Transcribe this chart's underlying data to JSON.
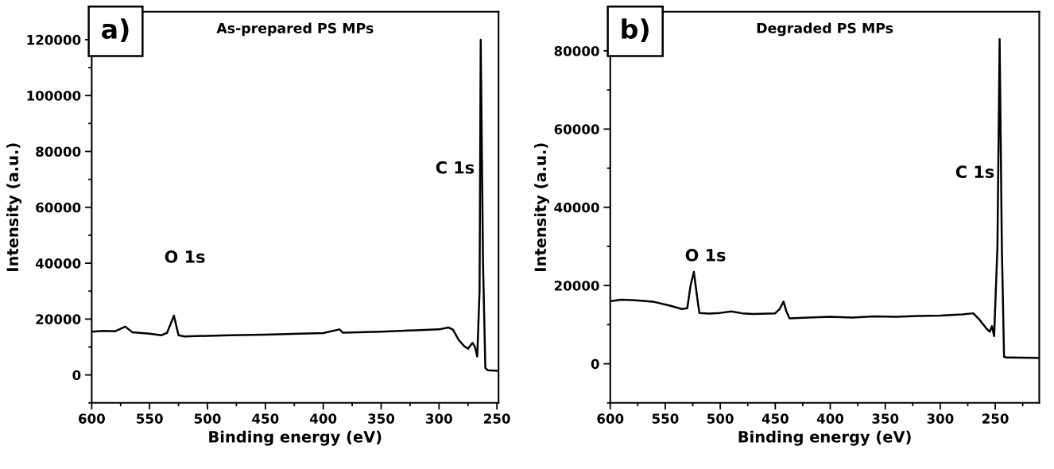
{
  "chart_data": [
    {
      "type": "line",
      "title": "As-prepared PS MPs",
      "xlabel": "Binding energy (eV)",
      "ylabel": "Intensity (a.u.)",
      "xlim": [
        600,
        248.6
      ],
      "xticks": [
        600,
        550,
        500,
        450,
        400,
        350,
        300,
        250
      ],
      "ylim": [
        -10000,
        130000
      ],
      "yticks": [
        0,
        20000,
        40000,
        60000,
        80000,
        100000,
        120000
      ],
      "grid": false,
      "legend": false,
      "marker": "none",
      "line_style": "solid",
      "annotations": [
        "a)",
        "O 1s",
        "C 1s"
      ],
      "series": [
        {
          "color": "#000000",
          "x": [
            600,
            590,
            580,
            571,
            565,
            550,
            540,
            535,
            529,
            525,
            520,
            500,
            480,
            450,
            420,
            400,
            386,
            383,
            350,
            320,
            300,
            292,
            288,
            283,
            278,
            275,
            271,
            269,
            267,
            265,
            264,
            262,
            260,
            258,
            250
          ],
          "values": [
            15500,
            15800,
            15600,
            17300,
            15300,
            14800,
            14200,
            15000,
            21200,
            14200,
            13800,
            14000,
            14200,
            14400,
            14800,
            15000,
            16300,
            15100,
            15500,
            16000,
            16300,
            17000,
            16200,
            12500,
            10200,
            9400,
            11500,
            10000,
            6600,
            30000,
            120000,
            40000,
            2500,
            1700,
            1500
          ]
        }
      ]
    },
    {
      "type": "line",
      "title": "Degraded PS MPs",
      "xlabel": "Binding energy (eV)",
      "ylabel": "Intensity (a.u.)",
      "xlim": [
        600,
        210
      ],
      "xticks": [
        600,
        550,
        500,
        450,
        400,
        350,
        300,
        250
      ],
      "ylim": [
        -10000,
        90000
      ],
      "yticks": [
        0,
        20000,
        40000,
        60000,
        80000
      ],
      "grid": false,
      "legend": false,
      "marker": "none",
      "line_style": "solid",
      "annotations": [
        "b)",
        "O 1s",
        "C 1s"
      ],
      "series": [
        {
          "color": "#000000",
          "x": [
            600,
            590,
            580,
            570,
            560,
            545,
            535,
            530,
            527,
            524,
            521,
            519,
            510,
            500,
            490,
            480,
            470,
            450,
            446,
            442.5,
            440,
            437,
            420,
            400,
            380,
            360,
            340,
            320,
            300,
            280,
            270,
            265,
            258,
            255,
            253,
            251,
            248,
            246,
            244,
            242,
            240,
            210
          ],
          "values": [
            16000,
            16400,
            16300,
            16100,
            15800,
            14800,
            14000,
            14200,
            20000,
            23500,
            17000,
            13000,
            12800,
            13000,
            13400,
            12900,
            12700,
            12900,
            14000,
            15900,
            13500,
            11600,
            11800,
            12000,
            11800,
            12100,
            12000,
            12200,
            12300,
            12600,
            12900,
            11500,
            9000,
            8200,
            9600,
            7100,
            30000,
            83000,
            30000,
            1800,
            1600,
            1500
          ]
        }
      ]
    }
  ]
}
